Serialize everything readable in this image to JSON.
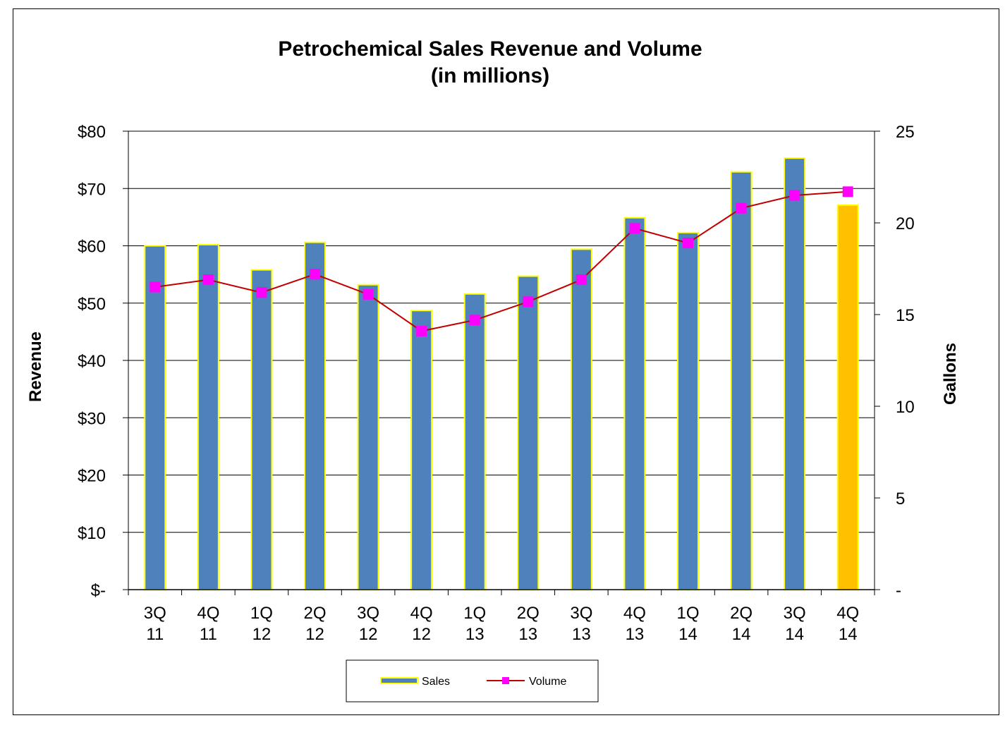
{
  "chart_data": {
    "type": "bar",
    "title": "Petrochemical Sales Revenue and Volume",
    "subtitle": "(in millions)",
    "ylabel": "Revenue",
    "y2label": "Gallons",
    "categories": [
      [
        "3Q",
        "11"
      ],
      [
        "4Q",
        "11"
      ],
      [
        "1Q",
        "12"
      ],
      [
        "2Q",
        "12"
      ],
      [
        "3Q",
        "12"
      ],
      [
        "4Q",
        "12"
      ],
      [
        "1Q",
        "13"
      ],
      [
        "2Q",
        "13"
      ],
      [
        "3Q",
        "13"
      ],
      [
        "4Q",
        "13"
      ],
      [
        "1Q",
        "14"
      ],
      [
        "2Q",
        "14"
      ],
      [
        "3Q",
        "14"
      ],
      [
        "4Q",
        "14"
      ]
    ],
    "ylim": [
      0,
      80
    ],
    "y2lim": [
      0,
      25
    ],
    "y_ticks": [
      "$-",
      "$10",
      "$20",
      "$30",
      "$40",
      "$50",
      "$60",
      "$70",
      "$80"
    ],
    "y2_ticks": [
      "-",
      "5",
      "10",
      "15",
      "20",
      "25"
    ],
    "grid": true,
    "legend_position": "bottom",
    "series": [
      {
        "name": "Sales",
        "kind": "bar",
        "axis": "left",
        "color": "#4F81BD",
        "edge_color": "#FFFF00",
        "highlight_color": "#FFC000",
        "highlight_index": 13,
        "values": [
          60.0,
          60.2,
          55.8,
          60.6,
          53.2,
          48.7,
          51.6,
          54.7,
          59.4,
          64.9,
          62.3,
          72.9,
          75.3,
          67.1
        ]
      },
      {
        "name": "Volume",
        "kind": "line",
        "axis": "right",
        "color": "#C00000",
        "marker_color": "#FF00FF",
        "values": [
          16.5,
          16.9,
          16.2,
          17.2,
          16.1,
          14.1,
          14.7,
          15.7,
          16.9,
          19.7,
          18.9,
          20.8,
          21.5,
          21.7
        ]
      }
    ]
  }
}
